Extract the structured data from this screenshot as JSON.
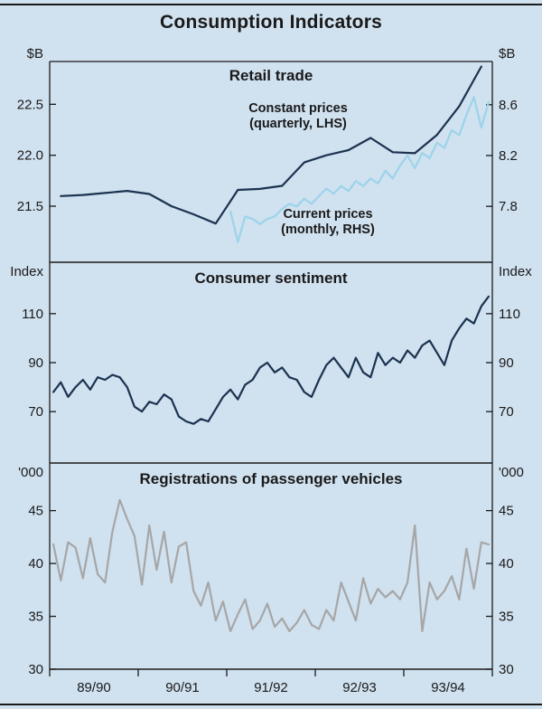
{
  "title": "Consumption Indicators",
  "colors": {
    "background": "#d0e1ef",
    "navy": "#1b3350",
    "light_blue": "#9cd4ea",
    "gray": "#a6a6a6",
    "text": "#1a1a1a",
    "frame": "#1a1a1a"
  },
  "x_axis": {
    "labels": [
      "89/90",
      "90/91",
      "91/92",
      "92/93",
      "93/94"
    ],
    "range": [
      1989.5,
      1994.5
    ],
    "boundaries": [
      1989.5,
      1990.5,
      1991.5,
      1992.5,
      1993.5,
      1994.5
    ]
  },
  "chart_data": [
    {
      "type": "line",
      "title": "Retail trade",
      "unit_left": "$B",
      "unit_right": "$B",
      "left_ticks": [
        {
          "v": 22.5,
          "label": "22.5"
        },
        {
          "v": 22.0,
          "label": "22.0"
        },
        {
          "v": 21.5,
          "label": "21.5"
        }
      ],
      "right_ticks": [
        {
          "v": 8.6,
          "label": "8.6"
        },
        {
          "v": 8.2,
          "label": "8.2"
        },
        {
          "v": 7.8,
          "label": "7.8"
        }
      ],
      "left_range": [
        20.95,
        22.92
      ],
      "right_range": [
        7.36,
        8.94
      ],
      "annotations": [
        {
          "lines": [
            "Constant prices",
            "(quarterly, LHS)"
          ]
        },
        {
          "lines": [
            "Current prices",
            "(monthly, RHS)"
          ]
        }
      ],
      "series": [
        {
          "name": "Constant prices (quarterly, LHS)",
          "axis": "left",
          "color_key": "navy",
          "x_start": 1989.625,
          "x_step": 0.25,
          "values": [
            21.6,
            21.61,
            21.63,
            21.65,
            21.62,
            21.5,
            21.42,
            21.33,
            21.66,
            21.67,
            21.7,
            21.93,
            22.0,
            22.05,
            22.17,
            22.03,
            22.02,
            22.2,
            22.48,
            22.87
          ]
        },
        {
          "name": "Current prices (monthly, RHS)",
          "axis": "right",
          "color_key": "light_blue",
          "x_start": 1991.542,
          "x_step": 0.083333,
          "values": [
            7.76,
            7.52,
            7.72,
            7.7,
            7.66,
            7.7,
            7.72,
            7.78,
            7.82,
            7.8,
            7.86,
            7.82,
            7.88,
            7.94,
            7.9,
            7.96,
            7.92,
            8.0,
            7.96,
            8.02,
            7.98,
            8.08,
            8.02,
            8.12,
            8.2,
            8.1,
            8.22,
            8.18,
            8.3,
            8.26,
            8.4,
            8.36,
            8.52,
            8.66,
            8.42,
            8.62
          ]
        }
      ]
    },
    {
      "type": "line",
      "title": "Consumer sentiment",
      "unit_left": "Index",
      "unit_right": "Index",
      "left_ticks": [
        {
          "v": 110,
          "label": "110"
        },
        {
          "v": 90,
          "label": "90"
        },
        {
          "v": 70,
          "label": "70"
        }
      ],
      "right_ticks": [
        {
          "v": 110,
          "label": "110"
        },
        {
          "v": 90,
          "label": "90"
        },
        {
          "v": 70,
          "label": "70"
        }
      ],
      "left_range": [
        49,
        131
      ],
      "right_range": [
        49,
        131
      ],
      "annotations": [],
      "series": [
        {
          "name": "Consumer sentiment",
          "axis": "left",
          "color_key": "navy",
          "x_start": 1989.542,
          "x_step": 0.083333,
          "values": [
            78,
            82,
            76,
            80,
            83,
            79,
            84,
            83,
            85,
            84,
            80,
            72,
            70,
            74,
            73,
            77,
            75,
            68,
            66,
            65,
            67,
            66,
            71,
            76,
            79,
            75,
            81,
            83,
            88,
            90,
            86,
            88,
            84,
            83,
            78,
            76,
            83,
            89,
            92,
            88,
            84,
            92,
            86,
            84,
            94,
            89,
            92,
            90,
            95,
            92,
            97,
            99,
            94,
            89,
            99,
            104,
            108,
            106,
            113,
            117
          ]
        }
      ]
    },
    {
      "type": "line",
      "title": "Registrations of passenger vehicles",
      "unit_left": "'000",
      "unit_right": "'000",
      "left_ticks": [
        {
          "v": 45,
          "label": "45"
        },
        {
          "v": 40,
          "label": "40"
        },
        {
          "v": 35,
          "label": "35"
        },
        {
          "v": 30,
          "label": "30"
        }
      ],
      "right_ticks": [
        {
          "v": 45,
          "label": "45"
        },
        {
          "v": 40,
          "label": "40"
        },
        {
          "v": 35,
          "label": "35"
        },
        {
          "v": 30,
          "label": "30"
        }
      ],
      "left_range": [
        30,
        49.5
      ],
      "right_range": [
        30,
        49.5
      ],
      "annotations": [],
      "series": [
        {
          "name": "Registrations of passenger vehicles",
          "axis": "left",
          "color_key": "gray",
          "x_start": 1989.542,
          "x_step": 0.083333,
          "values": [
            41.8,
            38.4,
            42.0,
            41.5,
            38.6,
            42.4,
            39.0,
            38.2,
            43.0,
            46.0,
            44.2,
            42.6,
            38.0,
            43.6,
            39.4,
            43.0,
            38.2,
            41.6,
            42.0,
            37.4,
            36.0,
            38.2,
            34.6,
            36.4,
            33.6,
            35.2,
            36.6,
            33.8,
            34.6,
            36.2,
            34.0,
            34.8,
            33.6,
            34.4,
            35.6,
            34.2,
            33.8,
            35.6,
            34.6,
            38.2,
            36.4,
            34.6,
            38.6,
            36.2,
            37.6,
            36.8,
            37.4,
            36.6,
            38.2,
            43.6,
            33.6,
            38.2,
            36.6,
            37.4,
            38.8,
            36.6,
            41.4,
            37.6,
            42.0,
            41.8
          ]
        }
      ]
    }
  ]
}
